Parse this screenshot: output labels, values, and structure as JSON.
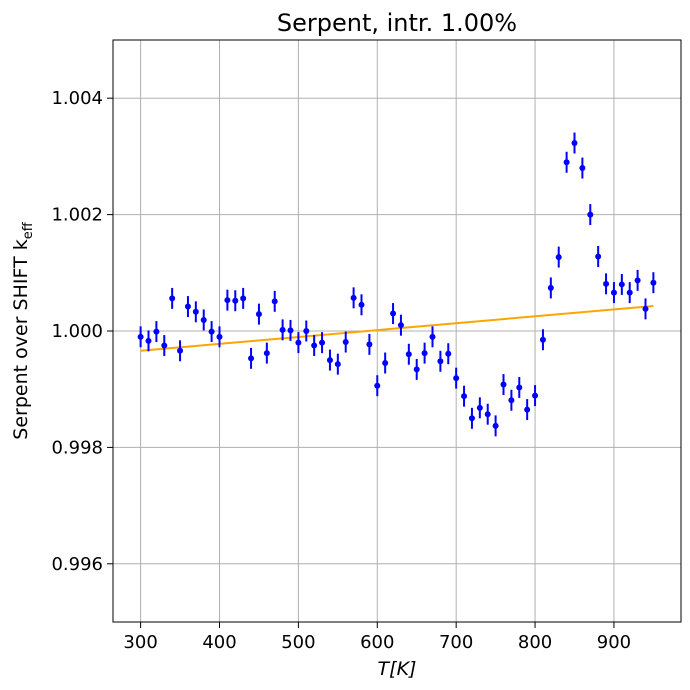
{
  "chart_data": {
    "type": "scatter",
    "title": "Serpent, intr. 1.00%",
    "xlabel": "T[K]",
    "ylabel": "Serpent over SHIFT k",
    "ylabel_subscript": "eff",
    "xlim": [
      265,
      985
    ],
    "ylim": [
      0.995,
      1.005
    ],
    "x_ticks": [
      300,
      400,
      500,
      600,
      700,
      800,
      900
    ],
    "y_ticks": [
      0.996,
      0.998,
      1.0,
      1.002,
      1.004
    ],
    "x_tick_labels": [
      "300",
      "400",
      "500",
      "600",
      "700",
      "800",
      "900"
    ],
    "y_tick_labels": [
      "0.996",
      "0.998",
      "1.000",
      "1.002",
      "1.004"
    ],
    "grid": true,
    "colors": {
      "points": "#0000ff",
      "fit": "#ffa500",
      "grid": "#b0b0b0"
    },
    "series": [
      {
        "kind": "errorbar",
        "x": [
          300,
          310,
          320,
          330,
          340,
          350,
          360,
          370,
          380,
          390,
          400,
          410,
          420,
          430,
          440,
          450,
          460,
          470,
          480,
          490,
          500,
          510,
          520,
          530,
          540,
          550,
          560,
          570,
          580,
          590,
          600,
          610,
          620,
          630,
          640,
          650,
          660,
          670,
          680,
          690,
          700,
          710,
          720,
          730,
          740,
          750,
          760,
          770,
          780,
          790,
          800,
          810,
          820,
          830,
          840,
          850,
          860,
          870,
          880,
          890,
          900,
          910,
          920,
          930,
          940,
          950
        ],
        "y": [
          0.9999,
          0.99983,
          0.99999,
          0.99975,
          1.00056,
          0.99966,
          1.00042,
          1.00033,
          1.00019,
          0.99999,
          0.9999,
          1.00053,
          1.00052,
          1.00056,
          0.99953,
          1.00029,
          0.99962,
          1.00051,
          1.00002,
          1.00001,
          0.9998,
          1.0,
          0.99975,
          0.9998,
          0.9995,
          0.99943,
          0.99981,
          1.00057,
          1.00045,
          0.99977,
          0.99906,
          0.99945,
          1.0003,
          1.0001,
          0.9996,
          0.99934,
          0.99962,
          0.9999,
          0.99948,
          0.99961,
          0.99919,
          0.99888,
          0.9985,
          0.99868,
          0.99857,
          0.99837,
          0.99908,
          0.99881,
          0.99903,
          0.99865,
          0.99889,
          0.99985,
          1.00074,
          1.00127,
          1.0029,
          1.00323,
          1.0028,
          1.002,
          1.00128,
          1.00081,
          1.00066,
          1.0008,
          1.00066,
          1.00087,
          1.00038,
          1.00083
        ],
        "yerr": 0.00018
      },
      {
        "kind": "line",
        "x": [
          300,
          950
        ],
        "y": [
          0.99966,
          1.00043
        ]
      }
    ]
  }
}
